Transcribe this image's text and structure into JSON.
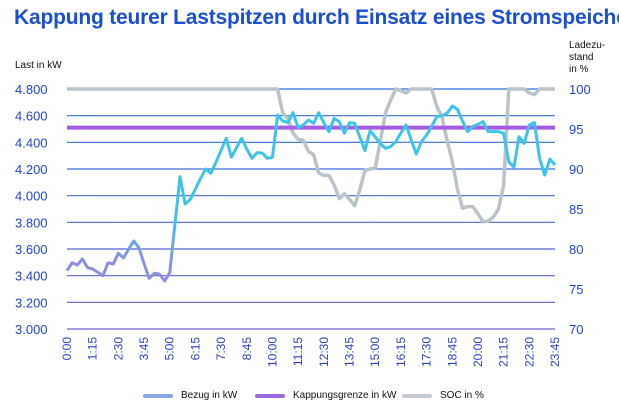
{
  "chart_data": {
    "type": "line",
    "title": "Kappung teurer Lastspitzen durch Einsatz eines Stromspeichers",
    "ylabel": "Last in kW",
    "y2label": "Ladezu-\nstand\nin %",
    "ylim": [
      3000,
      4800
    ],
    "y2lim": [
      70,
      100
    ],
    "yticks": [
      "3.000",
      "3.200",
      "3.400",
      "3.600",
      "3.800",
      "4.000",
      "4.200",
      "4.400",
      "4.600",
      "4.800"
    ],
    "y2ticks": [
      "70",
      "75",
      "80",
      "85",
      "90",
      "95",
      "100"
    ],
    "xtick_labels": [
      "0:00",
      "1:15",
      "2:30",
      "3:45",
      "5:00",
      "6:15",
      "7:30",
      "8:45",
      "10:00",
      "11:15",
      "12:30",
      "13:45",
      "15:00",
      "16:15",
      "17:30",
      "18:45",
      "20:00",
      "21:15",
      "22:30",
      "23:45"
    ],
    "x_interval_minutes": 15,
    "grid": true,
    "legend_position": "bottom",
    "series": [
      {
        "name": "Bezug in kW",
        "axis": "left",
        "color": "#3ec3ea",
        "color_low": "#8f8fe0",
        "values": [
          3437,
          3497,
          3480,
          3525,
          3460,
          3450,
          3425,
          3400,
          3497,
          3487,
          3568,
          3532,
          3600,
          3660,
          3610,
          3490,
          3380,
          3418,
          3412,
          3360,
          3423,
          3780,
          4142,
          3937,
          3972,
          4050,
          4130,
          4200,
          4168,
          4250,
          4340,
          4430,
          4288,
          4360,
          4430,
          4350,
          4280,
          4322,
          4320,
          4280,
          4288,
          4605,
          4560,
          4548,
          4622,
          4510,
          4530,
          4568,
          4542,
          4622,
          4548,
          4480,
          4580,
          4555,
          4468,
          4548,
          4542,
          4440,
          4338,
          4488,
          4440,
          4392,
          4355,
          4368,
          4405,
          4470,
          4530,
          4420,
          4312,
          4405,
          4455,
          4520,
          4592,
          4600,
          4618,
          4672,
          4648,
          4560,
          4480,
          4518,
          4535,
          4555,
          4480,
          4480,
          4480,
          4468,
          4255,
          4212,
          4442,
          4392,
          4530,
          4548,
          4280,
          4155,
          4275,
          4230
        ]
      },
      {
        "name": "Kappungsgrenze in kW",
        "axis": "left",
        "color": "#a45ce0",
        "values_constant": 4510
      },
      {
        "name": "SOC in %",
        "axis": "right",
        "color": "#bcc4cb",
        "values": [
          100,
          100,
          100,
          100,
          100,
          100,
          100,
          100,
          100,
          100,
          100,
          100,
          100,
          100,
          100,
          100,
          100,
          100,
          100,
          100,
          100,
          100,
          100,
          100,
          100,
          100,
          100,
          100,
          100,
          100,
          100,
          100,
          100,
          100,
          100,
          100,
          100,
          100,
          100,
          100,
          100,
          100,
          97,
          96.3,
          94.5,
          93.7,
          93.6,
          92.2,
          91.8,
          89.5,
          89.2,
          89.2,
          88,
          86.3,
          86.9,
          86.2,
          85.4,
          87.4,
          89.8,
          90,
          90.1,
          93.5,
          97,
          98.6,
          100,
          99.8,
          99.5,
          100,
          100,
          100,
          100,
          100,
          97.8,
          96.5,
          93.5,
          91,
          87.5,
          85.1,
          85.3,
          85.3,
          84.4,
          83.4,
          83.5,
          84,
          85,
          88,
          100,
          100,
          100,
          100,
          99.5,
          99.3,
          100,
          100,
          100,
          100
        ]
      }
    ]
  }
}
